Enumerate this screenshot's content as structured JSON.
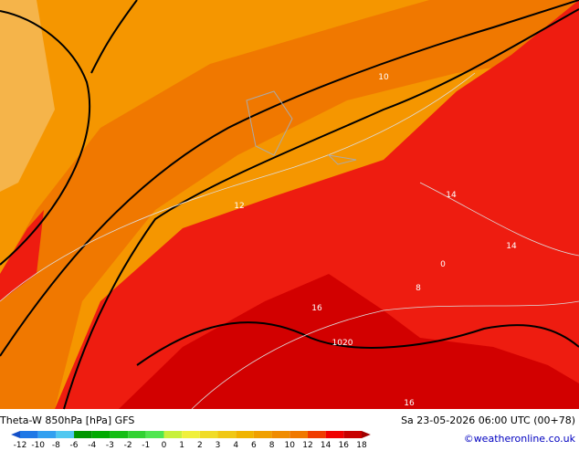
{
  "header": {
    "title": "Theta-W 850hPa [hPa] GFS",
    "valid": "Sa 23-05-2026 06:00 UTC (00+78)",
    "credit": "©weatheronline.co.uk"
  },
  "legend": {
    "ticks": [
      -12,
      -10,
      -8,
      -6,
      -4,
      -3,
      -2,
      -1,
      0,
      1,
      2,
      3,
      4,
      6,
      8,
      10,
      12,
      14,
      16,
      18
    ],
    "colors": [
      "#1450c8",
      "#1e78e6",
      "#32a0f0",
      "#50c8f0",
      "#009600",
      "#00aa00",
      "#14be14",
      "#32d232",
      "#50e650",
      "#c8f03c",
      "#f0f03c",
      "#f0dc28",
      "#f0c814",
      "#f0b400",
      "#f0a000",
      "#f08c00",
      "#f07800",
      "#f03c00",
      "#f00000",
      "#c80000",
      "#a00000"
    ]
  },
  "map": {
    "labels": [
      "10",
      "12",
      "14",
      "14",
      "16",
      "16",
      "1020",
      "8",
      "0"
    ]
  }
}
